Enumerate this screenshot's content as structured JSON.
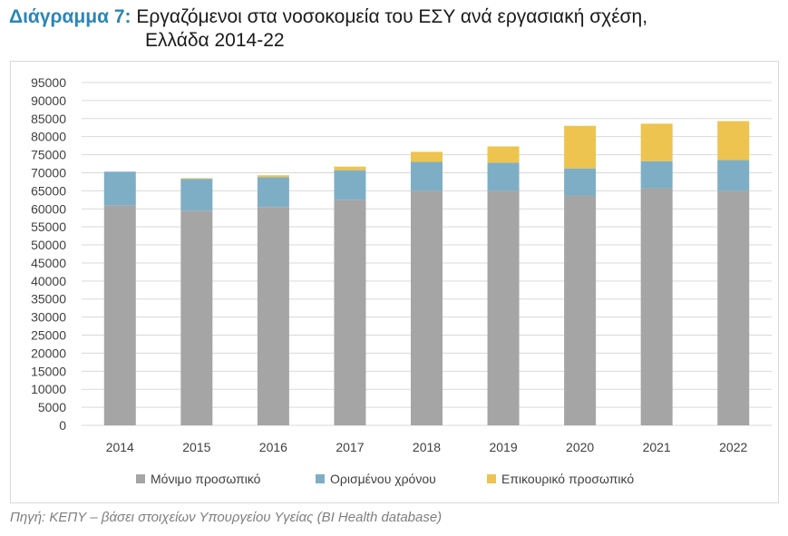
{
  "header": {
    "title_prefix": "Διάγραμμα 7:",
    "title_line1": "Εργαζόμενοι στα νοσοκομεία του ΕΣΥ ανά εργασιακή σχέση,",
    "title_line2": "Ελλάδα 2014-22"
  },
  "source": "Πηγή: ΚΕΠΥ – βάσει στοιχείων Υπουργείου Υγείας (BI Health database)",
  "colors": {
    "permanent": "#a5a5a5",
    "fixed_term": "#7eaec6",
    "auxiliary": "#ecc44f",
    "grid": "#d9d9d9",
    "axis_text": "#404040"
  },
  "chart_data": {
    "type": "bar",
    "stacked": true,
    "title": "",
    "xlabel": "",
    "ylabel": "",
    "ylim": [
      0,
      95000
    ],
    "y_ticks": [
      0,
      5000,
      10000,
      15000,
      20000,
      25000,
      30000,
      35000,
      40000,
      45000,
      50000,
      55000,
      60000,
      65000,
      70000,
      75000,
      80000,
      85000,
      90000,
      95000
    ],
    "grid": true,
    "legend_position": "bottom",
    "categories": [
      "2014",
      "2015",
      "2016",
      "2017",
      "2018",
      "2019",
      "2020",
      "2021",
      "2022"
    ],
    "series": [
      {
        "name": "Μόνιμο προσωπικό",
        "values": [
          61000,
          59500,
          60500,
          62500,
          65000,
          65000,
          63700,
          65700,
          65000
        ]
      },
      {
        "name": "Ορισμένου χρόνου",
        "values": [
          9300,
          8800,
          8300,
          8200,
          8000,
          7800,
          7500,
          7500,
          8500
        ]
      },
      {
        "name": "Επικουρικό προσωπικό",
        "values": [
          0,
          200,
          500,
          1000,
          2800,
          4500,
          11800,
          10400,
          10800
        ]
      }
    ]
  }
}
